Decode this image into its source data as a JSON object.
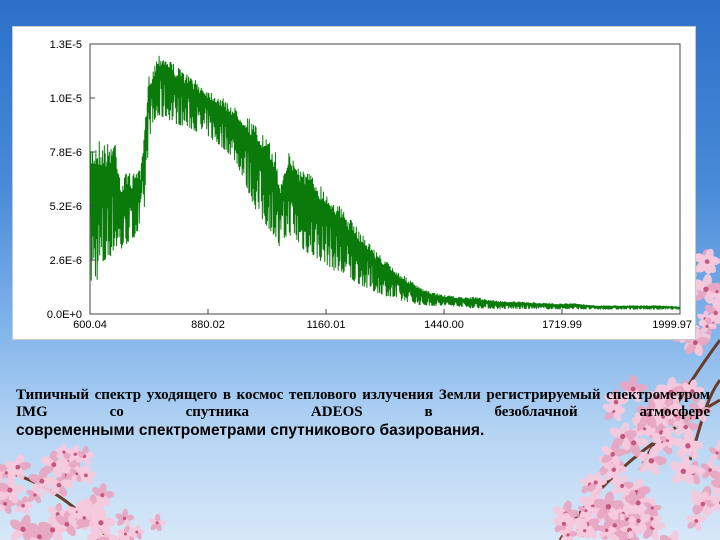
{
  "chart_data": {
    "type": "line",
    "title": "",
    "xlabel": "",
    "ylabel": "",
    "xlim": [
      600.04,
      1999.97
    ],
    "ylim": [
      0,
      1.3e-05
    ],
    "x_tick_labels": [
      "600.04",
      "880.02",
      "1160.01",
      "1440.00",
      "1719.99",
      "1999.97"
    ],
    "y_tick_labels": [
      "1.3E-5",
      "1.0E-5",
      "7.8E-6",
      "5.2E-6",
      "2.6E-6",
      "0.0E+0"
    ],
    "grid": false,
    "legend": "none",
    "series": [
      {
        "color": "#0a7a0a",
        "envelope_x": [
          600,
          620,
          640,
          660,
          675,
          690,
          700,
          710,
          720,
          730,
          740,
          750,
          760,
          770,
          780,
          790,
          800,
          820,
          840,
          860,
          880,
          900,
          920,
          940,
          960,
          980,
          1000,
          1020,
          1040,
          1050,
          1060,
          1070,
          1080,
          1090,
          1100,
          1120,
          1140,
          1160,
          1180,
          1200,
          1220,
          1240,
          1260,
          1280,
          1300,
          1320,
          1340,
          1360,
          1380,
          1400,
          1420,
          1440,
          1460,
          1480,
          1500,
          1520,
          1540,
          1560,
          1580,
          1600,
          1650,
          1700,
          1750,
          1800,
          1850,
          1900,
          1950,
          2000
        ],
        "envelope_upper": [
          8.2e-06,
          8.5e-06,
          8.2e-06,
          8.5e-06,
          6.2e-06,
          7.1e-06,
          6.5e-06,
          7.2e-06,
          6.8e-06,
          9e-06,
          1.15e-05,
          1.18e-05,
          1.25e-05,
          1.26e-05,
          1.24e-05,
          1.23e-05,
          1.2e-05,
          1.17e-05,
          1.14e-05,
          1.11e-05,
          1.08e-05,
          1.06e-05,
          1.03e-05,
          1e-05,
          9.7e-06,
          9.4e-06,
          8.9e-06,
          8.4e-06,
          7.8e-06,
          6.2e-06,
          7.2e-06,
          7.8e-06,
          7.6e-06,
          7.3e-06,
          7.1e-06,
          6.8e-06,
          6.4e-06,
          5.9e-06,
          5.5e-06,
          5e-06,
          4.5e-06,
          4e-06,
          3.5e-06,
          3e-06,
          2.6e-06,
          2.2e-06,
          1.9e-06,
          1.6e-06,
          1.3e-06,
          1.1e-06,
          1e-06,
          9e-07,
          8.5e-07,
          8e-07,
          8e-07,
          8e-07,
          7e-07,
          6.5e-07,
          6e-07,
          6e-07,
          5.5e-07,
          5e-07,
          5e-07,
          4e-07,
          4e-07,
          4e-07,
          4e-07,
          3.5e-07
        ],
        "envelope_lower": [
          2e-07,
          5e-07,
          1.5e-06,
          2.2e-06,
          2.5e-06,
          2.8e-06,
          3e-06,
          3.3e-06,
          3.5e-06,
          4.5e-06,
          8e-06,
          8.5e-06,
          8.8e-06,
          8.9e-06,
          9e-06,
          8.8e-06,
          8.7e-06,
          8.6e-06,
          8.5e-06,
          8.3e-06,
          8.2e-06,
          7.8e-06,
          7.5e-06,
          7.1e-06,
          6.2e-06,
          5e-06,
          4e-06,
          3.5e-06,
          3e-06,
          2.5e-06,
          2.8e-06,
          3.2e-06,
          3e-06,
          2.8e-06,
          2.5e-06,
          2.2e-06,
          2e-06,
          1.8e-06,
          1.5e-06,
          1.3e-06,
          1.1e-06,
          1e-06,
          8e-07,
          7e-07,
          6e-07,
          5e-07,
          4e-07,
          4e-07,
          3e-07,
          3e-07,
          3e-07,
          3e-07,
          3e-07,
          3e-07,
          2e-07,
          2e-07,
          2e-07,
          2e-07,
          2e-07,
          2e-07,
          2e-07,
          2e-07,
          2e-07,
          2e-07,
          2e-07,
          2e-07,
          2e-07,
          2e-07
        ]
      }
    ]
  },
  "caption": {
    "line1": "Типичный спектр уходящего в космос теплового излучения Земли регистрируемый спектрометром IMG со спутника ADEOS в безоблачной атмосфере",
    "line2": "современными спектрометрами спутникового базирования."
  },
  "colors": {
    "series": "#0a7a0a",
    "blossom": "#f6c9dc",
    "blossom_dark": "#e8a6c2",
    "branch": "#6b3a2a",
    "sky": "#3f82d4"
  }
}
